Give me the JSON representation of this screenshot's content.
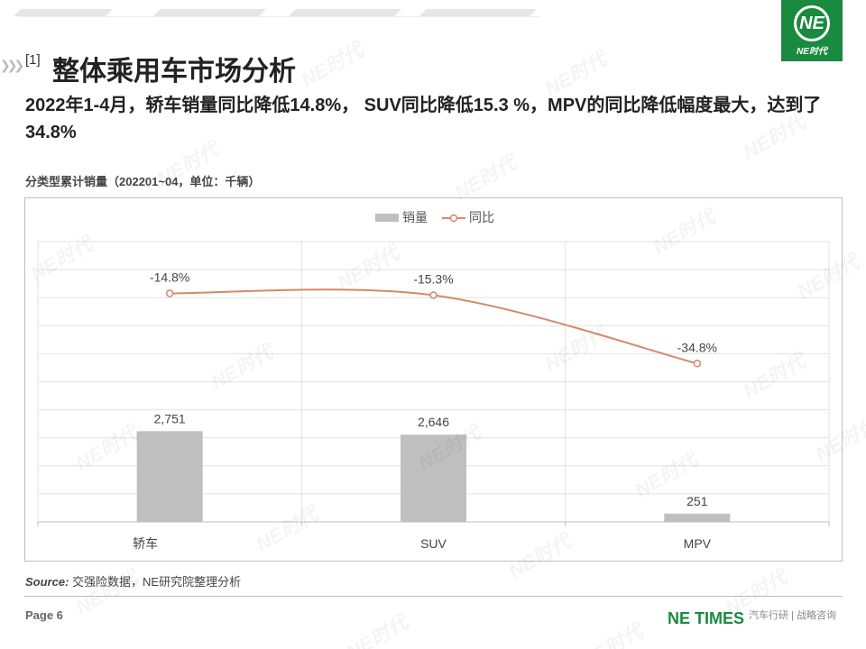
{
  "logo": {
    "mark": "NE",
    "text": "NE时代"
  },
  "header": {
    "tag": "[1]",
    "title": "整体乘用车市场分析",
    "headline": "2022年1-4月，轿车销量同比降低14.8%， SUV同比降低15.3  %，MPV的同比降低幅度最大，达到了34.8%"
  },
  "chart_caption": "分类型累计销量（202201~04，单位：千辆）",
  "chart_data": {
    "type": "bar",
    "categories": [
      "轿车",
      "SUV",
      "MPV"
    ],
    "series": [
      {
        "name": "销量",
        "type": "bar",
        "values": [
          2751,
          2646,
          251
        ],
        "labels": [
          "2,751",
          "2,646",
          "251"
        ],
        "color": "#bfbfbf"
      },
      {
        "name": "同比",
        "type": "line",
        "values": [
          -14.8,
          -15.3,
          -34.8
        ],
        "labels": [
          "-14.8%",
          "-15.3%",
          "-34.8%"
        ],
        "color": "#d4896a"
      }
    ],
    "ylim": [
      0,
      8500
    ],
    "y2lim": [
      -80,
      0
    ],
    "grid": true,
    "legend": "top-center"
  },
  "source": {
    "label": "Source:",
    "text": " 交强险数据，NE研究院整理分析"
  },
  "footer": {
    "page": "Page 6",
    "brand": "NE TIMES",
    "tagline": "汽车行研 | 战略咨询"
  },
  "colors": {
    "brand_green": "#1a8a3f",
    "bar": "#bfbfbf",
    "line": "#d4896a"
  },
  "watermark": "NE时代"
}
